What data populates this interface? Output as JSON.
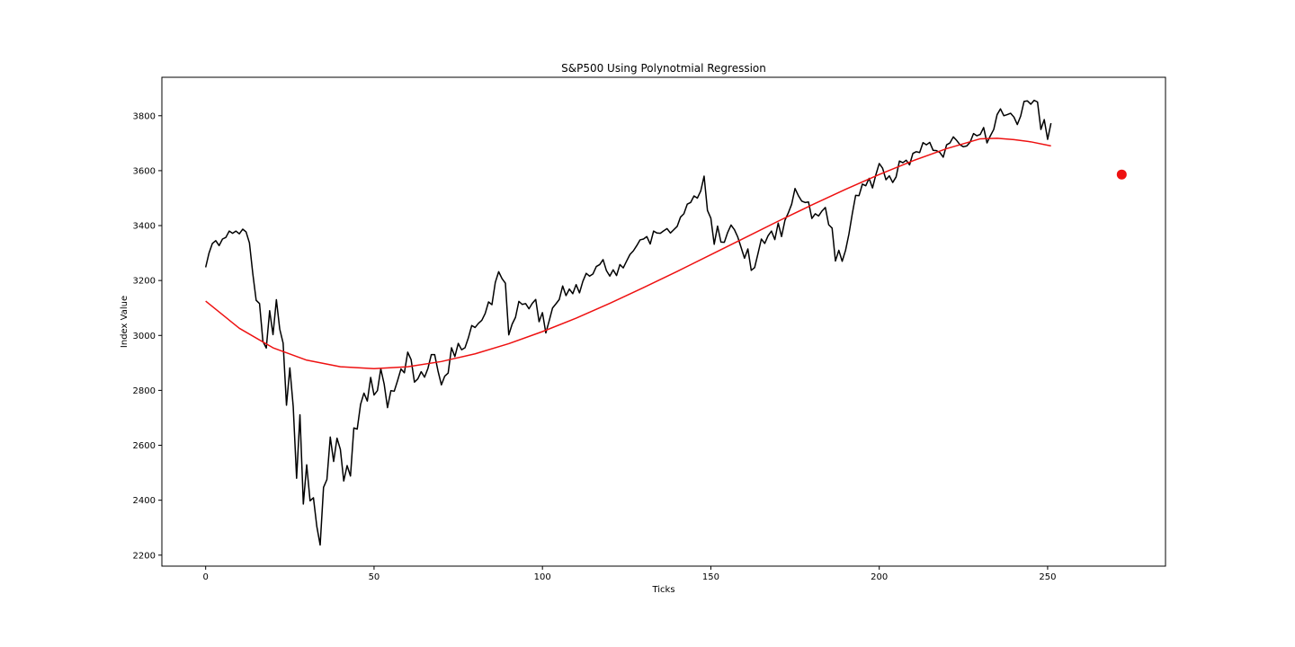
{
  "chart_data": {
    "type": "line",
    "title": "S&P500 Using Polynotmial Regression",
    "xlabel": "Ticks",
    "ylabel": "Index Value",
    "xlim": [
      -13,
      285
    ],
    "ylim": [
      2160,
      3940
    ],
    "xticks": [
      0,
      50,
      100,
      150,
      200,
      250
    ],
    "yticks": [
      2200,
      2400,
      2600,
      2800,
      3000,
      3200,
      3400,
      3600,
      3800
    ],
    "grid": false,
    "legend": "none",
    "series": [
      {
        "color": "#000000",
        "style": "line",
        "points": [
          [
            0,
            3248
          ],
          [
            1,
            3300
          ],
          [
            2,
            3335
          ],
          [
            3,
            3345
          ],
          [
            4,
            3327
          ],
          [
            5,
            3351
          ],
          [
            6,
            3357
          ],
          [
            7,
            3380
          ],
          [
            8,
            3372
          ],
          [
            9,
            3380
          ],
          [
            10,
            3370
          ],
          [
            11,
            3387
          ],
          [
            12,
            3377
          ],
          [
            13,
            3337
          ],
          [
            14,
            3225
          ],
          [
            15,
            3128
          ],
          [
            16,
            3116
          ],
          [
            17,
            2978
          ],
          [
            18,
            2954
          ],
          [
            19,
            3090
          ],
          [
            20,
            3003
          ],
          [
            21,
            3130
          ],
          [
            22,
            3023
          ],
          [
            23,
            2972
          ],
          [
            24,
            2746
          ],
          [
            25,
            2882
          ],
          [
            26,
            2741
          ],
          [
            27,
            2480
          ],
          [
            28,
            2711
          ],
          [
            29,
            2386
          ],
          [
            30,
            2529
          ],
          [
            31,
            2398
          ],
          [
            32,
            2409
          ],
          [
            33,
            2305
          ],
          [
            34,
            2237
          ],
          [
            35,
            2447
          ],
          [
            36,
            2475
          ],
          [
            37,
            2630
          ],
          [
            38,
            2541
          ],
          [
            39,
            2626
          ],
          [
            40,
            2585
          ],
          [
            41,
            2470
          ],
          [
            42,
            2526
          ],
          [
            43,
            2488
          ],
          [
            44,
            2663
          ],
          [
            45,
            2659
          ],
          [
            46,
            2749
          ],
          [
            47,
            2790
          ],
          [
            48,
            2761
          ],
          [
            49,
            2847
          ],
          [
            50,
            2783
          ],
          [
            51,
            2799
          ],
          [
            52,
            2878
          ],
          [
            53,
            2823
          ],
          [
            54,
            2737
          ],
          [
            55,
            2799
          ],
          [
            56,
            2797
          ],
          [
            57,
            2836
          ],
          [
            58,
            2878
          ],
          [
            59,
            2864
          ],
          [
            60,
            2939
          ],
          [
            61,
            2912
          ],
          [
            62,
            2830
          ],
          [
            63,
            2842
          ],
          [
            64,
            2868
          ],
          [
            65,
            2848
          ],
          [
            66,
            2880
          ],
          [
            67,
            2930
          ],
          [
            68,
            2930
          ],
          [
            69,
            2870
          ],
          [
            70,
            2820
          ],
          [
            71,
            2852
          ],
          [
            72,
            2863
          ],
          [
            73,
            2955
          ],
          [
            74,
            2923
          ],
          [
            75,
            2971
          ],
          [
            76,
            2948
          ],
          [
            77,
            2955
          ],
          [
            78,
            2991
          ],
          [
            79,
            3036
          ],
          [
            80,
            3029
          ],
          [
            81,
            3044
          ],
          [
            82,
            3055
          ],
          [
            83,
            3080
          ],
          [
            84,
            3122
          ],
          [
            85,
            3112
          ],
          [
            86,
            3193
          ],
          [
            87,
            3232
          ],
          [
            88,
            3207
          ],
          [
            89,
            3190
          ],
          [
            90,
            3002
          ],
          [
            91,
            3041
          ],
          [
            92,
            3066
          ],
          [
            93,
            3124
          ],
          [
            94,
            3113
          ],
          [
            95,
            3116
          ],
          [
            96,
            3097
          ],
          [
            97,
            3117
          ],
          [
            98,
            3131
          ],
          [
            99,
            3050
          ],
          [
            100,
            3083
          ],
          [
            101,
            3009
          ],
          [
            102,
            3053
          ],
          [
            103,
            3100
          ],
          [
            104,
            3115
          ],
          [
            105,
            3131
          ],
          [
            106,
            3180
          ],
          [
            107,
            3145
          ],
          [
            108,
            3169
          ],
          [
            109,
            3152
          ],
          [
            110,
            3185
          ],
          [
            111,
            3155
          ],
          [
            112,
            3197
          ],
          [
            113,
            3226
          ],
          [
            114,
            3216
          ],
          [
            115,
            3224
          ],
          [
            116,
            3251
          ],
          [
            117,
            3258
          ],
          [
            118,
            3276
          ],
          [
            119,
            3236
          ],
          [
            120,
            3216
          ],
          [
            121,
            3239
          ],
          [
            122,
            3218
          ],
          [
            123,
            3258
          ],
          [
            124,
            3246
          ],
          [
            125,
            3271
          ],
          [
            126,
            3295
          ],
          [
            127,
            3308
          ],
          [
            128,
            3327
          ],
          [
            129,
            3348
          ],
          [
            130,
            3351
          ],
          [
            131,
            3360
          ],
          [
            132,
            3333
          ],
          [
            133,
            3380
          ],
          [
            134,
            3373
          ],
          [
            135,
            3372
          ],
          [
            136,
            3381
          ],
          [
            137,
            3389
          ],
          [
            138,
            3373
          ],
          [
            139,
            3385
          ],
          [
            140,
            3397
          ],
          [
            141,
            3431
          ],
          [
            142,
            3443
          ],
          [
            143,
            3478
          ],
          [
            144,
            3484
          ],
          [
            145,
            3508
          ],
          [
            146,
            3500
          ],
          [
            147,
            3526
          ],
          [
            148,
            3580
          ],
          [
            149,
            3455
          ],
          [
            150,
            3427
          ],
          [
            151,
            3332
          ],
          [
            152,
            3398
          ],
          [
            153,
            3340
          ],
          [
            154,
            3339
          ],
          [
            155,
            3375
          ],
          [
            156,
            3402
          ],
          [
            157,
            3385
          ],
          [
            158,
            3358
          ],
          [
            159,
            3320
          ],
          [
            160,
            3281
          ],
          [
            161,
            3315
          ],
          [
            162,
            3237
          ],
          [
            163,
            3247
          ],
          [
            164,
            3298
          ],
          [
            165,
            3351
          ],
          [
            166,
            3335
          ],
          [
            167,
            3363
          ],
          [
            168,
            3380
          ],
          [
            169,
            3349
          ],
          [
            170,
            3409
          ],
          [
            171,
            3360
          ],
          [
            172,
            3419
          ],
          [
            173,
            3446
          ],
          [
            174,
            3478
          ],
          [
            175,
            3535
          ],
          [
            176,
            3509
          ],
          [
            177,
            3489
          ],
          [
            178,
            3484
          ],
          [
            179,
            3486
          ],
          [
            180,
            3426
          ],
          [
            181,
            3443
          ],
          [
            182,
            3435
          ],
          [
            183,
            3453
          ],
          [
            184,
            3466
          ],
          [
            185,
            3403
          ],
          [
            186,
            3391
          ],
          [
            187,
            3271
          ],
          [
            188,
            3310
          ],
          [
            189,
            3270
          ],
          [
            190,
            3310
          ],
          [
            191,
            3369
          ],
          [
            192,
            3443
          ],
          [
            193,
            3510
          ],
          [
            194,
            3509
          ],
          [
            195,
            3551
          ],
          [
            196,
            3545
          ],
          [
            197,
            3572
          ],
          [
            198,
            3537
          ],
          [
            199,
            3585
          ],
          [
            200,
            3626
          ],
          [
            201,
            3609
          ],
          [
            202,
            3567
          ],
          [
            203,
            3581
          ],
          [
            204,
            3557
          ],
          [
            205,
            3577
          ],
          [
            206,
            3635
          ],
          [
            207,
            3629
          ],
          [
            208,
            3638
          ],
          [
            209,
            3621
          ],
          [
            210,
            3663
          ],
          [
            211,
            3669
          ],
          [
            212,
            3666
          ],
          [
            213,
            3702
          ],
          [
            214,
            3694
          ],
          [
            215,
            3703
          ],
          [
            216,
            3674
          ],
          [
            217,
            3673
          ],
          [
            218,
            3666
          ],
          [
            219,
            3649
          ],
          [
            220,
            3694
          ],
          [
            221,
            3701
          ],
          [
            222,
            3723
          ],
          [
            223,
            3710
          ],
          [
            224,
            3694
          ],
          [
            225,
            3687
          ],
          [
            226,
            3690
          ],
          [
            227,
            3704
          ],
          [
            228,
            3735
          ],
          [
            229,
            3727
          ],
          [
            230,
            3732
          ],
          [
            231,
            3757
          ],
          [
            232,
            3701
          ],
          [
            233,
            3727
          ],
          [
            234,
            3750
          ],
          [
            235,
            3804
          ],
          [
            236,
            3825
          ],
          [
            237,
            3800
          ],
          [
            238,
            3804
          ],
          [
            239,
            3809
          ],
          [
            240,
            3795
          ],
          [
            241,
            3768
          ],
          [
            242,
            3799
          ],
          [
            243,
            3852
          ],
          [
            244,
            3854
          ],
          [
            245,
            3842
          ],
          [
            246,
            3856
          ],
          [
            247,
            3850
          ],
          [
            248,
            3750
          ],
          [
            249,
            3786
          ],
          [
            250,
            3714
          ],
          [
            251,
            3773
          ]
        ]
      },
      {
        "color": "#ee1111",
        "style": "line",
        "points": [
          [
            0,
            3125
          ],
          [
            10,
            3026
          ],
          [
            20,
            2955
          ],
          [
            30,
            2910
          ],
          [
            40,
            2886
          ],
          [
            50,
            2879
          ],
          [
            60,
            2886
          ],
          [
            70,
            2905
          ],
          [
            80,
            2933
          ],
          [
            90,
            2970
          ],
          [
            100,
            3014
          ],
          [
            110,
            3063
          ],
          [
            120,
            3117
          ],
          [
            130,
            3174
          ],
          [
            140,
            3233
          ],
          [
            150,
            3294
          ],
          [
            160,
            3355
          ],
          [
            170,
            3416
          ],
          [
            180,
            3475
          ],
          [
            190,
            3532
          ],
          [
            200,
            3586
          ],
          [
            210,
            3636
          ],
          [
            220,
            3680
          ],
          [
            230,
            3716
          ],
          [
            235,
            3718
          ],
          [
            240,
            3713
          ],
          [
            245,
            3705
          ],
          [
            251,
            3690
          ]
        ]
      },
      {
        "color": "#ee1111",
        "style": "marker",
        "points": [
          [
            272,
            3586
          ]
        ]
      }
    ]
  }
}
